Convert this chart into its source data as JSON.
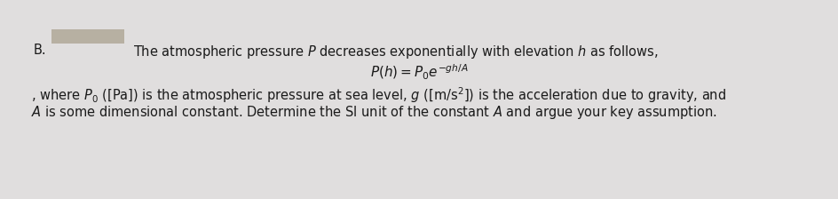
{
  "bg_color": "#e0dede",
  "text_color": "#1a1a1a",
  "font_size": 10.5,
  "label_B": "B.",
  "redacted_color": "#b0a898",
  "line1": "The atmospheric pressure $\\mathit{P}$ decreases exponentially with elevation $\\mathit{h}$ as follows,",
  "line2": "$P(h) = P_0 e^{-gh/A}$",
  "line3": ", where $P_0$ ([Pa]) is the atmospheric pressure at sea level, $g$ ([m/s²]) is the acceleration due to gravity, and",
  "line4": "$A$ is some dimensional constant. Determine the SI unit of the constant $A$ and argue your key assumption."
}
